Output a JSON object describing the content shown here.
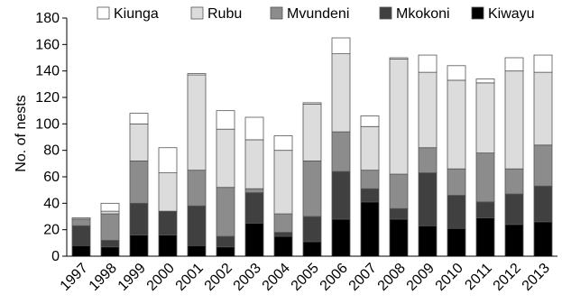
{
  "chart_data": {
    "type": "bar",
    "stacked": true,
    "ylabel": "No. of nests",
    "xlabel": "",
    "title": "",
    "ylim": [
      0,
      180
    ],
    "yticks": [
      0,
      20,
      40,
      60,
      80,
      100,
      120,
      140,
      160,
      180
    ],
    "grid": false,
    "legend": "top",
    "categories": [
      "1997",
      "1998",
      "1999",
      "2000",
      "2001",
      "2002",
      "2003",
      "2004",
      "2005",
      "2006",
      "2007",
      "2008",
      "2009",
      "2010",
      "2011",
      "2012",
      "2013"
    ],
    "series": [
      {
        "name": "Kiwayu",
        "color": "#000000",
        "values": [
          8,
          7,
          16,
          16,
          8,
          7,
          25,
          15,
          11,
          28,
          41,
          28,
          23,
          21,
          29,
          24,
          26
        ]
      },
      {
        "name": "Mkokoni",
        "color": "#404040",
        "values": [
          15,
          5,
          24,
          18,
          30,
          8,
          23,
          3,
          19,
          36,
          10,
          8,
          40,
          25,
          12,
          23,
          27
        ]
      },
      {
        "name": "Mvundeni",
        "color": "#8c8c8c",
        "values": [
          5,
          20,
          32,
          0,
          27,
          37,
          3,
          14,
          42,
          30,
          14,
          26,
          19,
          20,
          37,
          19,
          31
        ]
      },
      {
        "name": "Rubu",
        "color": "#dcdcdc",
        "values": [
          1,
          2,
          28,
          29,
          72,
          44,
          37,
          48,
          43,
          59,
          33,
          87,
          57,
          67,
          53,
          74,
          55
        ]
      },
      {
        "name": "Kiunga",
        "color": "#ffffff",
        "values": [
          0,
          6,
          8,
          19,
          1,
          14,
          17,
          11,
          1,
          12,
          8,
          1,
          13,
          11,
          3,
          10,
          13
        ]
      }
    ],
    "legend_order": [
      "Kiunga",
      "Rubu",
      "Mvundeni",
      "Mkokoni",
      "Kiwayu"
    ]
  }
}
